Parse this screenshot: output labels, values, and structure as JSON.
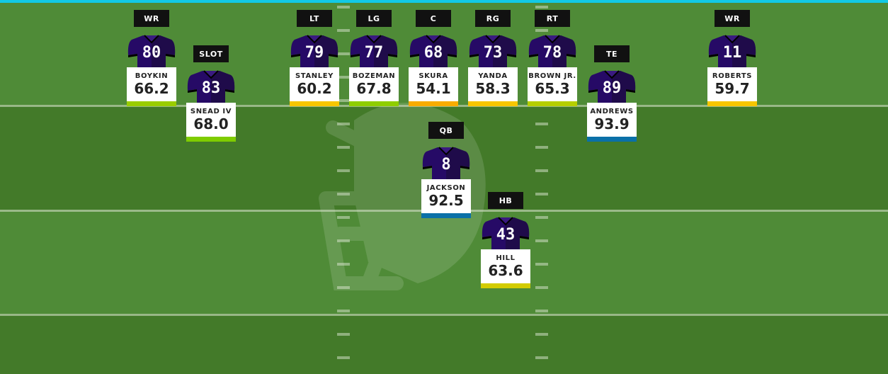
{
  "accent_color": "#12c9e6",
  "players": [
    {
      "position": "WR",
      "number": "80",
      "name": "BOYKIN",
      "grade": "66.2",
      "grade_color": "#9acd00"
    },
    {
      "position": "SLOT",
      "number": "83",
      "name": "SNEAD IV",
      "grade": "68.0",
      "grade_color": "#7fcc00"
    },
    {
      "position": "LT",
      "number": "79",
      "name": "STANLEY",
      "grade": "60.2",
      "grade_color": "#f7c600"
    },
    {
      "position": "LG",
      "number": "77",
      "name": "BOZEMAN",
      "grade": "67.8",
      "grade_color": "#8fce00"
    },
    {
      "position": "C",
      "number": "68",
      "name": "SKURA",
      "grade": "54.1",
      "grade_color": "#f9ac00"
    },
    {
      "position": "RG",
      "number": "73",
      "name": "YANDA",
      "grade": "58.3",
      "grade_color": "#f7c600"
    },
    {
      "position": "RT",
      "number": "78",
      "name": "BROWN JR.",
      "grade": "65.3",
      "grade_color": "#b6cf00"
    },
    {
      "position": "TE",
      "number": "89",
      "name": "ANDREWS",
      "grade": "93.9",
      "grade_color": "#0a70a8"
    },
    {
      "position": "WR",
      "number": "11",
      "name": "ROBERTS",
      "grade": "59.7",
      "grade_color": "#f7c600"
    },
    {
      "position": "QB",
      "number": "8",
      "name": "JACKSON",
      "grade": "92.5",
      "grade_color": "#0a70a8"
    },
    {
      "position": "HB",
      "number": "43",
      "name": "HILL",
      "grade": "63.6",
      "grade_color": "#d3cc00"
    }
  ]
}
